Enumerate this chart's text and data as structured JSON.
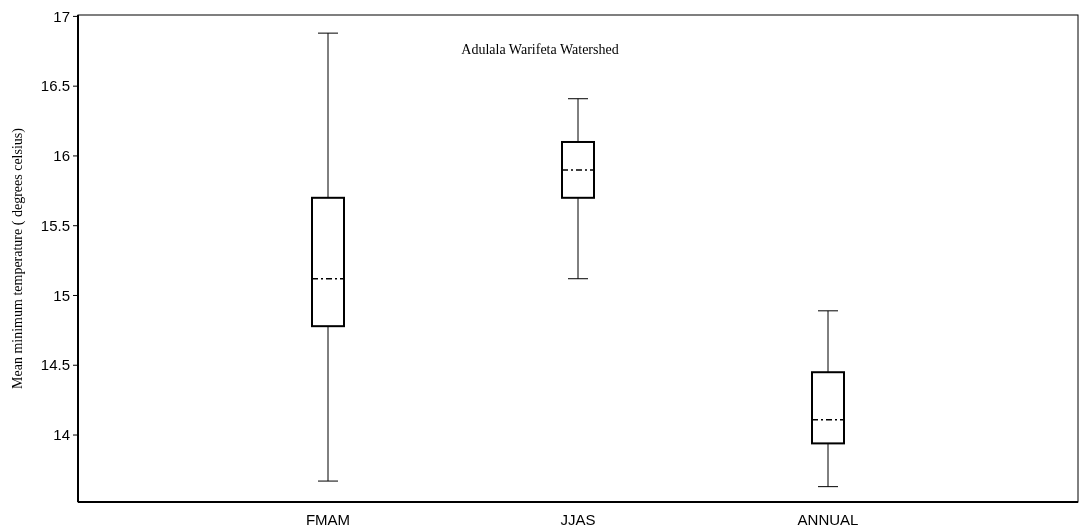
{
  "chart_data": {
    "type": "box",
    "title": "Adulala Warifeta Watershed",
    "ylabel": "Mean minimum temperature ( degrees celsius)",
    "categories": [
      "FMAM",
      "JJAS",
      "ANNUAL"
    ],
    "boxes": [
      {
        "low": 13.67,
        "q1": 14.78,
        "median": 15.12,
        "q3": 15.7,
        "high": 16.88
      },
      {
        "low": 15.12,
        "q1": 15.7,
        "median": 15.9,
        "q3": 16.1,
        "high": 16.41
      },
      {
        "low": 13.63,
        "q1": 13.94,
        "median": 14.11,
        "q3": 14.45,
        "high": 14.89
      }
    ],
    "ylim": [
      13.52,
      17.01
    ],
    "yticks": [
      14,
      14.5,
      15,
      15.5,
      16,
      16.5,
      17
    ],
    "grid": false
  }
}
